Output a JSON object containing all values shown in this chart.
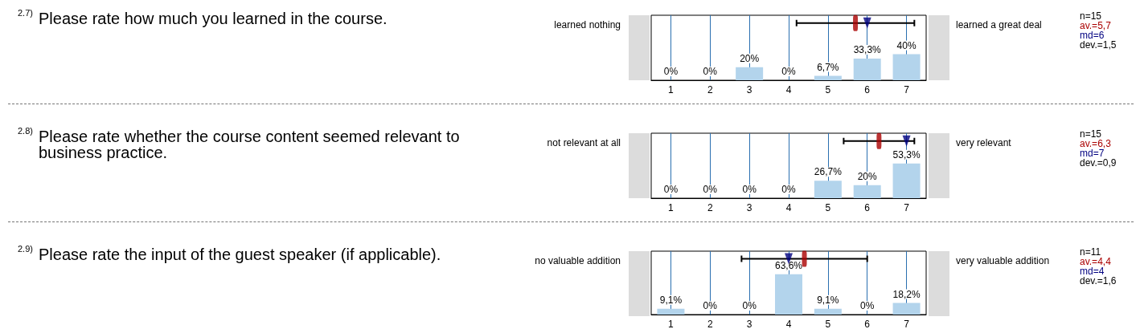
{
  "chart_data": [
    {
      "type": "bar",
      "annotations": [
        "2.7)",
        "Please rate how much you learned in the course.",
        "learned nothing",
        "learned a great deal",
        "n=15",
        "av.=5,7",
        "md=6",
        "dev.=1,5"
      ],
      "x": [
        1,
        2,
        3,
        4,
        5,
        6,
        7
      ],
      "values": [
        0,
        0,
        20,
        0,
        6.7,
        33.3,
        40
      ],
      "value_labels": [
        "0%",
        "0%",
        "20%",
        "0%",
        "6,7%",
        "33,3%",
        "40%"
      ],
      "color": "#b3d4ec",
      "xlim": [
        0.5,
        7.5
      ],
      "xticks": [
        1,
        2,
        3,
        4,
        5,
        6,
        7
      ],
      "ylim": [
        0,
        100
      ],
      "tick_labels": "x",
      "grid": "x",
      "series": [
        {
          "type": "scatter",
          "color": "#aa0000",
          "marker": "square",
          "x": [
            5.7
          ],
          "values": [
            88
          ],
          "xerrors": [
            1.5
          ]
        },
        {
          "type": "scatter",
          "color": "#000080",
          "marker": "triangle",
          "x": [
            6
          ],
          "values": [
            88
          ]
        }
      ]
    },
    {
      "type": "bar",
      "annotations": [
        "2.8)",
        "Please rate whether the course content seemed relevant to business practice.",
        "not relevant at all",
        "very relevant",
        "n=15",
        "av.=6,3",
        "md=7",
        "dev.=0,9"
      ],
      "x": [
        1,
        2,
        3,
        4,
        5,
        6,
        7
      ],
      "values": [
        0,
        0,
        0,
        0,
        26.7,
        20,
        53.3
      ],
      "value_labels": [
        "0%",
        "0%",
        "0%",
        "0%",
        "26,7%",
        "20%",
        "53,3%"
      ],
      "color": "#b3d4ec",
      "xlim": [
        0.5,
        7.5
      ],
      "xticks": [
        1,
        2,
        3,
        4,
        5,
        6,
        7
      ],
      "ylim": [
        0,
        100
      ],
      "tick_labels": "x",
      "grid": "x",
      "series": [
        {
          "type": "scatter",
          "color": "#aa0000",
          "marker": "square",
          "x": [
            6.3
          ],
          "values": [
            88
          ],
          "xerrors": [
            0.9
          ]
        },
        {
          "type": "scatter",
          "color": "#000080",
          "marker": "triangle",
          "x": [
            7
          ],
          "values": [
            88
          ]
        }
      ]
    },
    {
      "type": "bar",
      "annotations": [
        "2.9)",
        "Please rate the input of the guest speaker (if applicable).",
        "no valuable addition",
        "very valuable addition",
        "n=11",
        "av.=4,4",
        "md=4",
        "dev.=1,6"
      ],
      "x": [
        1,
        2,
        3,
        4,
        5,
        6,
        7
      ],
      "values": [
        9.1,
        0,
        0,
        63.6,
        9.1,
        0,
        18.2
      ],
      "value_labels": [
        "9,1%",
        "0%",
        "0%",
        "63,6%",
        "9,1%",
        "0%",
        "18,2%"
      ],
      "color": "#b3d4ec",
      "xlim": [
        0.5,
        7.5
      ],
      "xticks": [
        1,
        2,
        3,
        4,
        5,
        6,
        7
      ],
      "ylim": [
        0,
        100
      ],
      "tick_labels": "x",
      "grid": "x",
      "series": [
        {
          "type": "scatter",
          "color": "#aa0000",
          "marker": "square",
          "x": [
            4.4
          ],
          "values": [
            88
          ],
          "xerrors": [
            1.6
          ]
        },
        {
          "type": "scatter",
          "color": "#000080",
          "marker": "triangle",
          "x": [
            4
          ],
          "values": [
            88
          ]
        }
      ]
    }
  ]
}
